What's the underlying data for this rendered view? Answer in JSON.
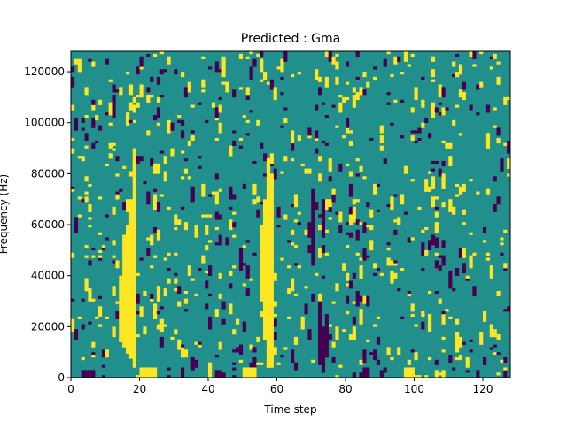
{
  "chart_data": {
    "type": "heatmap",
    "title": "Predicted : Gma",
    "xlabel": "Time step",
    "ylabel": "Frequency (Hz)",
    "xlim": [
      0,
      128
    ],
    "ylim": [
      0,
      128000
    ],
    "x_ticks": [
      0,
      20,
      40,
      60,
      80,
      100,
      120
    ],
    "y_ticks": [
      0,
      20000,
      40000,
      60000,
      80000,
      100000,
      120000
    ],
    "y_tick_labels": [
      "0",
      "20000",
      "40000",
      "60000",
      "80000",
      "100000",
      "120000"
    ],
    "grid_shape": {
      "time_steps": 128,
      "frequency_bins": 128
    },
    "background_value": 0.5,
    "colors": {
      "low": "#440154",
      "mid": "#21908c",
      "high": "#fde725"
    },
    "segments": [
      {
        "t": 17,
        "f0": 7500,
        "f1": 70000,
        "value": 1
      },
      {
        "t": 18,
        "f0": 4000,
        "f1": 90000,
        "value": 1
      },
      {
        "t": 16,
        "f0": 9500,
        "f1": 60000,
        "value": 1
      },
      {
        "t": 15,
        "f0": 12000,
        "f1": 56000,
        "value": 1
      },
      {
        "t": 14,
        "f0": 14000,
        "f1": 40000,
        "value": 1
      },
      {
        "t": 57,
        "f0": 4000,
        "f1": 86000,
        "value": 1
      },
      {
        "t": 58,
        "f0": 6000,
        "f1": 80000,
        "value": 1
      },
      {
        "t": 56,
        "f0": 15000,
        "f1": 70000,
        "value": 1
      },
      {
        "t": 55,
        "f0": 30000,
        "f1": 60000,
        "value": 1
      },
      {
        "t": 3,
        "f0": 0,
        "f1": 3000,
        "value": 0
      },
      {
        "t": 4,
        "f0": 0,
        "f1": 3000,
        "value": 0
      },
      {
        "t": 5,
        "f0": 0,
        "f1": 3000,
        "value": 0
      },
      {
        "t": 6,
        "f0": 0,
        "f1": 3000,
        "value": 0
      },
      {
        "t": 42,
        "f0": 0,
        "f1": 3000,
        "value": 0
      },
      {
        "t": 43,
        "f0": 0,
        "f1": 3000,
        "value": 0
      },
      {
        "t": 72,
        "f0": 5000,
        "f1": 30000,
        "value": 0
      },
      {
        "t": 73,
        "f0": 2000,
        "f1": 20000,
        "value": 0
      },
      {
        "t": 74,
        "f0": 8000,
        "f1": 25000,
        "value": 0
      },
      {
        "t": 85,
        "f0": 0,
        "f1": 4000,
        "value": 0
      },
      {
        "t": 86,
        "f0": 0,
        "f1": 4000,
        "value": 0
      },
      {
        "t": 70,
        "f0": 44000,
        "f1": 74000,
        "value": 0
      },
      {
        "t": 73,
        "f0": 55000,
        "f1": 70000,
        "value": 0
      },
      {
        "t": 90,
        "f0": 0,
        "f1": 3000,
        "value": 0
      },
      {
        "t": 118,
        "f0": 0,
        "f1": 3000,
        "value": 0
      },
      {
        "t": 20,
        "f0": 0,
        "f1": 4000,
        "value": 1
      },
      {
        "t": 21,
        "f0": 0,
        "f1": 4000,
        "value": 1
      },
      {
        "t": 22,
        "f0": 0,
        "f1": 4000,
        "value": 1
      },
      {
        "t": 23,
        "f0": 0,
        "f1": 4000,
        "value": 1
      },
      {
        "t": 24,
        "f0": 0,
        "f1": 4000,
        "value": 1
      },
      {
        "t": 50,
        "f0": 0,
        "f1": 4000,
        "value": 1
      },
      {
        "t": 51,
        "f0": 0,
        "f1": 4000,
        "value": 1
      },
      {
        "t": 52,
        "f0": 0,
        "f1": 4000,
        "value": 1
      },
      {
        "t": 53,
        "f0": 0,
        "f1": 4000,
        "value": 1
      },
      {
        "t": 97,
        "f0": 0,
        "f1": 4000,
        "value": 1
      },
      {
        "t": 98,
        "f0": 0,
        "f1": 4000,
        "value": 1
      },
      {
        "t": 99,
        "f0": 0,
        "f1": 4000,
        "value": 1
      },
      {
        "t": 81,
        "f0": 60000,
        "f1": 64000,
        "value": 1
      },
      {
        "t": 83,
        "f0": 28000,
        "f1": 34000,
        "value": 0
      }
    ],
    "scatter_seed": 20240607,
    "scatter_high_fraction": 0.11,
    "scatter_low_fraction": 0.07
  }
}
